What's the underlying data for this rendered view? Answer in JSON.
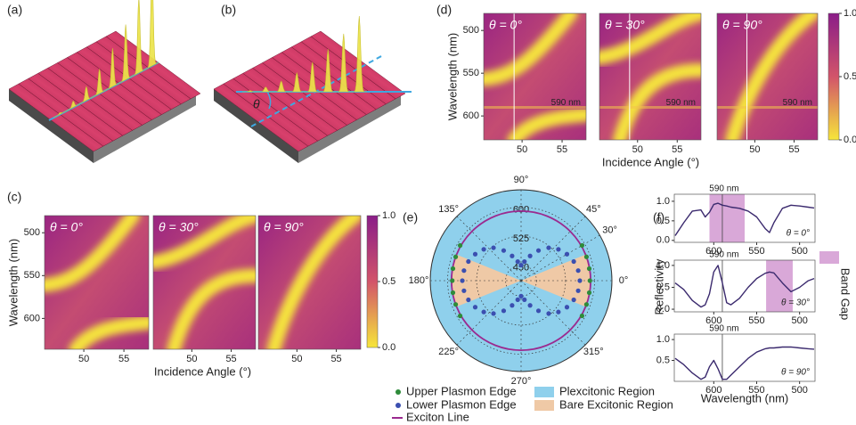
{
  "figure": {
    "a": {
      "label": "(a)"
    },
    "b": {
      "label": "(b)",
      "angle": "θ"
    },
    "c": {
      "label": "(c)",
      "ylabel": "Wavelength (nm)",
      "xlabel": "Incidence Angle (°)",
      "panels": [
        "θ = 0°",
        "θ = 30°",
        "θ = 90°"
      ],
      "xlim": [
        45.1,
        58.1
      ],
      "xticks": [
        50,
        55
      ],
      "ylim": [
        480,
        636
      ],
      "yticks": [
        500,
        550,
        600
      ],
      "colorbar": {
        "lim": [
          0,
          1
        ],
        "ticks": [
          {
            "value": 1,
            "label": "1.0"
          },
          0.5,
          {
            "value": 0,
            "label": "0.0"
          }
        ]
      }
    },
    "d": {
      "label": "(d)",
      "ylabel": "Wavelength (nm)",
      "xlabel": "Incidence Angle (°)",
      "panels": [
        "θ = 0°",
        "θ = 30°",
        "θ = 90°"
      ],
      "annotation": "590 nm",
      "annotation_at": 590,
      "marker_angle": 49,
      "xlim": [
        45.2,
        58
      ],
      "xticks": [
        50,
        55
      ],
      "ylim": [
        480,
        628
      ],
      "yticks": [
        500,
        550,
        600
      ],
      "colorbar": {
        "lim": [
          0,
          1
        ],
        "ticks": [
          {
            "value": 1,
            "label": "1.0"
          },
          0.5,
          {
            "value": 0,
            "label": "0.0"
          }
        ]
      }
    },
    "e": {
      "label": "(e)",
      "rlim": [
        410,
        645
      ],
      "rticks": [
        450,
        525,
        600
      ],
      "angle_ticks": [
        {
          "value": 90,
          "label": "90°"
        },
        {
          "value": 45,
          "label": "45°"
        },
        {
          "value": 30,
          "label": "30°"
        },
        {
          "value": 0,
          "label": "0°"
        },
        {
          "value": 315,
          "label": "315°"
        },
        {
          "value": 270,
          "label": "270°"
        },
        {
          "value": 225,
          "label": "225°"
        },
        {
          "value": 180,
          "label": "180°"
        },
        {
          "value": 135,
          "label": "135°"
        }
      ],
      "exciton": 590,
      "upper": {
        "name": "Upper Plasmon Edge",
        "color": "#2e8b3a",
        "angles": [
          330,
          340,
          350,
          0,
          10,
          20,
          30,
          150,
          160,
          170,
          180,
          190,
          200,
          210
        ],
        "values": [
          592,
          590,
          589,
          588,
          589,
          590,
          592,
          592,
          590,
          589,
          588,
          589,
          590,
          592
        ]
      },
      "lower": {
        "name": "Lower Plasmon Edge",
        "color": "#3b4fb0",
        "angles": [
          0,
          10,
          20,
          30,
          40,
          50,
          60,
          70,
          80,
          90,
          100,
          110,
          120,
          130,
          140,
          150,
          160,
          170,
          180,
          190,
          200,
          210,
          220,
          230,
          240,
          250,
          260,
          270,
          280,
          290,
          300,
          310,
          320,
          330,
          340,
          350
        ],
        "values": [
          562,
          560,
          555,
          547,
          536,
          521,
          500,
          478,
          460,
          450,
          460,
          478,
          500,
          521,
          536,
          547,
          555,
          560,
          562,
          560,
          555,
          547,
          536,
          521,
          500,
          478,
          460,
          450,
          460,
          478,
          500,
          521,
          536,
          547,
          555,
          560
        ]
      },
      "exciton_name": "Exciton Line",
      "exciton_color": "#9b2a8f",
      "plexcitonic": {
        "name": "Plexcitonic Region",
        "color": "#8fd0ec"
      },
      "bare": {
        "name": "Bare Excitonic Region",
        "color": "#efc9a6",
        "half_width": 22
      }
    },
    "f": {
      "label": "(f)",
      "ylabel": "Reflectivity",
      "xlabel": "Wavelength (nm)",
      "xlim": [
        646,
        482
      ],
      "xticks": [
        600,
        550,
        500
      ],
      "marker": 590,
      "marker_label": "590 nm",
      "band_gap": "Band Gap",
      "band_color": "#d9a8d8",
      "line_color": "#3b2a6e",
      "x": [
        645,
        635,
        625,
        615,
        610,
        605,
        600,
        595,
        590,
        585,
        580,
        570,
        560,
        550,
        540,
        535,
        530,
        520,
        510,
        500,
        490,
        483
      ],
      "plots": [
        {
          "name": "θ = 0°",
          "ylim": [
            -0.05,
            1.18
          ],
          "yticks": [
            {
              "value": 1,
              "label": "1.0"
            },
            0.5,
            {
              "value": 0,
              "label": "0.0"
            }
          ],
          "band": [
            605,
            564
          ],
          "values": [
            0.12,
            0.45,
            0.75,
            0.78,
            0.6,
            0.72,
            0.92,
            0.95,
            0.9,
            0.88,
            0.85,
            0.82,
            0.75,
            0.6,
            0.3,
            0.2,
            0.45,
            0.82,
            0.9,
            0.88,
            0.85,
            0.83
          ]
        },
        {
          "name": "θ = 30°",
          "ylim": [
            -0.06,
            1.12
          ],
          "yticks": [
            {
              "value": 1,
              "label": "1.0"
            },
            0.5,
            {
              "value": 0,
              "label": "0.0"
            }
          ],
          "band": [
            539,
            508
          ],
          "values": [
            0.6,
            0.45,
            0.2,
            0.05,
            0.1,
            0.35,
            0.85,
            1.0,
            0.6,
            0.15,
            0.1,
            0.25,
            0.5,
            0.7,
            0.82,
            0.85,
            0.83,
            0.6,
            0.4,
            0.5,
            0.65,
            0.7
          ]
        },
        {
          "name": "θ = 90°",
          "ylim": [
            0,
            1.13
          ],
          "yticks": [
            {
              "value": 1,
              "label": "1.0"
            },
            0.5
          ],
          "values": [
            0.55,
            0.4,
            0.2,
            0.05,
            0.1,
            0.35,
            0.5,
            0.3,
            0.05,
            0.05,
            0.15,
            0.35,
            0.55,
            0.7,
            0.78,
            0.8,
            0.8,
            0.82,
            0.82,
            0.8,
            0.78,
            0.77
          ]
        }
      ]
    }
  }
}
